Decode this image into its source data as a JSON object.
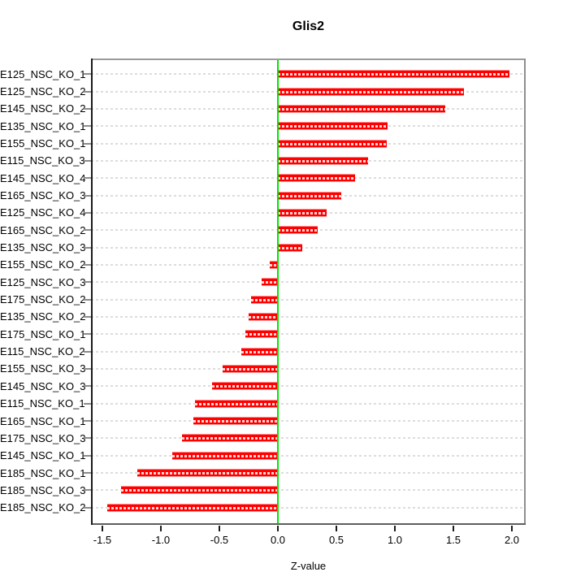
{
  "chart_data": {
    "type": "bar",
    "orientation": "horizontal",
    "title": "Glis2",
    "xlabel": "Z-value",
    "ylabel": "",
    "categories": [
      "E125_NSC_KO_1",
      "E125_NSC_KO_2",
      "E145_NSC_KO_2",
      "E135_NSC_KO_1",
      "E155_NSC_KO_1",
      "E115_NSC_KO_3",
      "E145_NSC_KO_4",
      "E165_NSC_KO_3",
      "E125_NSC_KO_4",
      "E165_NSC_KO_2",
      "E135_NSC_KO_3",
      "E155_NSC_KO_2",
      "E125_NSC_KO_3",
      "E175_NSC_KO_2",
      "E135_NSC_KO_2",
      "E175_NSC_KO_1",
      "E115_NSC_KO_2",
      "E155_NSC_KO_3",
      "E145_NSC_KO_3",
      "E115_NSC_KO_1",
      "E165_NSC_KO_1",
      "E175_NSC_KO_3",
      "E145_NSC_KO_1",
      "E185_NSC_KO_1",
      "E185_NSC_KO_3",
      "E185_NSC_KO_2"
    ],
    "values": [
      1.98,
      1.59,
      1.43,
      0.94,
      0.93,
      0.77,
      0.66,
      0.54,
      0.42,
      0.34,
      0.21,
      -0.07,
      -0.14,
      -0.23,
      -0.25,
      -0.28,
      -0.31,
      -0.47,
      -0.56,
      -0.71,
      -0.72,
      -0.82,
      -0.9,
      -1.2,
      -1.34,
      -1.46
    ],
    "x_tick_labels": [
      "-1.5",
      "-1.0",
      "-0.5",
      "0.0",
      "0.5",
      "1.0",
      "1.5",
      "2.0"
    ],
    "x_tick_values": [
      -1.5,
      -1.0,
      -0.5,
      0.0,
      0.5,
      1.0,
      1.5,
      2.0
    ],
    "xlim": [
      -1.597,
      2.118
    ],
    "grid": true,
    "legend": "none",
    "reference_line_x": 0.0,
    "colors": {
      "bar_fill": "#ff0000",
      "bar_edge": "#ff8f8f",
      "bar_center_dash": "rgba(255,255,255,0.85)",
      "zero_line": "#00e400",
      "gridline": "#dcdcdc",
      "box_top": "#9b9b9b",
      "box_right": "#8f8f8f",
      "box_bottom": "#5e5e5e",
      "axis_left": "#1a1a1a",
      "text": "#000000"
    }
  }
}
